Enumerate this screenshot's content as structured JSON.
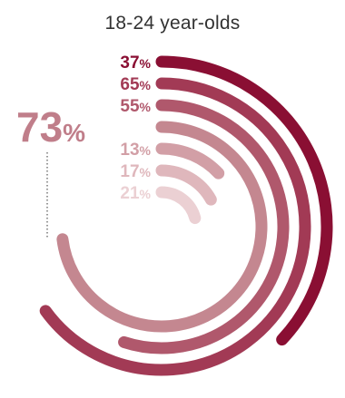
{
  "chart_data": {
    "type": "radial-bar",
    "title": "18-24 year-olds",
    "highlight": {
      "value": 73,
      "unit": "%",
      "color": "#c07e8a"
    },
    "unit": "%",
    "series": [
      {
        "value": 37,
        "color": "#8a0f33"
      },
      {
        "value": 65,
        "color": "#a23a55"
      },
      {
        "value": 55,
        "color": "#b0586c"
      },
      {
        "value": 73,
        "color": "#c48790"
      },
      {
        "value": 13,
        "color": "#d29fa6"
      },
      {
        "value": 17,
        "color": "#dfb7bc"
      },
      {
        "value": 21,
        "color": "#ebd0d3"
      }
    ]
  }
}
